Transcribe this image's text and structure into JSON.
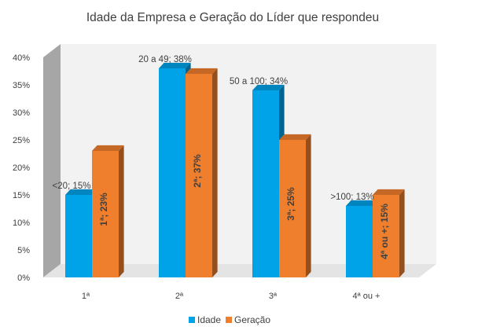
{
  "chart_data": {
    "type": "bar",
    "title": "Idade da Empresa e Geração do Líder que respondeu",
    "categories": [
      "1ª",
      "2ª",
      "3ª",
      "4ª ou +"
    ],
    "ylim": [
      0,
      40
    ],
    "y_ticks": [
      "0%",
      "5%",
      "10%",
      "15%",
      "20%",
      "25%",
      "30%",
      "35%",
      "40%"
    ],
    "grid": false,
    "legend_position": "bottom",
    "series": [
      {
        "name": "Idade",
        "color": "#00A2E8",
        "values": [
          15,
          38,
          34,
          13
        ],
        "labels": [
          "<20; 15%",
          "20 a 49; 38%",
          "50 a 100; 34%",
          ">100; 13%"
        ]
      },
      {
        "name": "Geração",
        "color": "#F07F2D",
        "values": [
          23,
          37,
          25,
          15
        ],
        "labels": [
          "1ª; 23%",
          "2ª; 37%",
          "3ª; 25%",
          "4ª ou +; 15%"
        ]
      }
    ]
  }
}
